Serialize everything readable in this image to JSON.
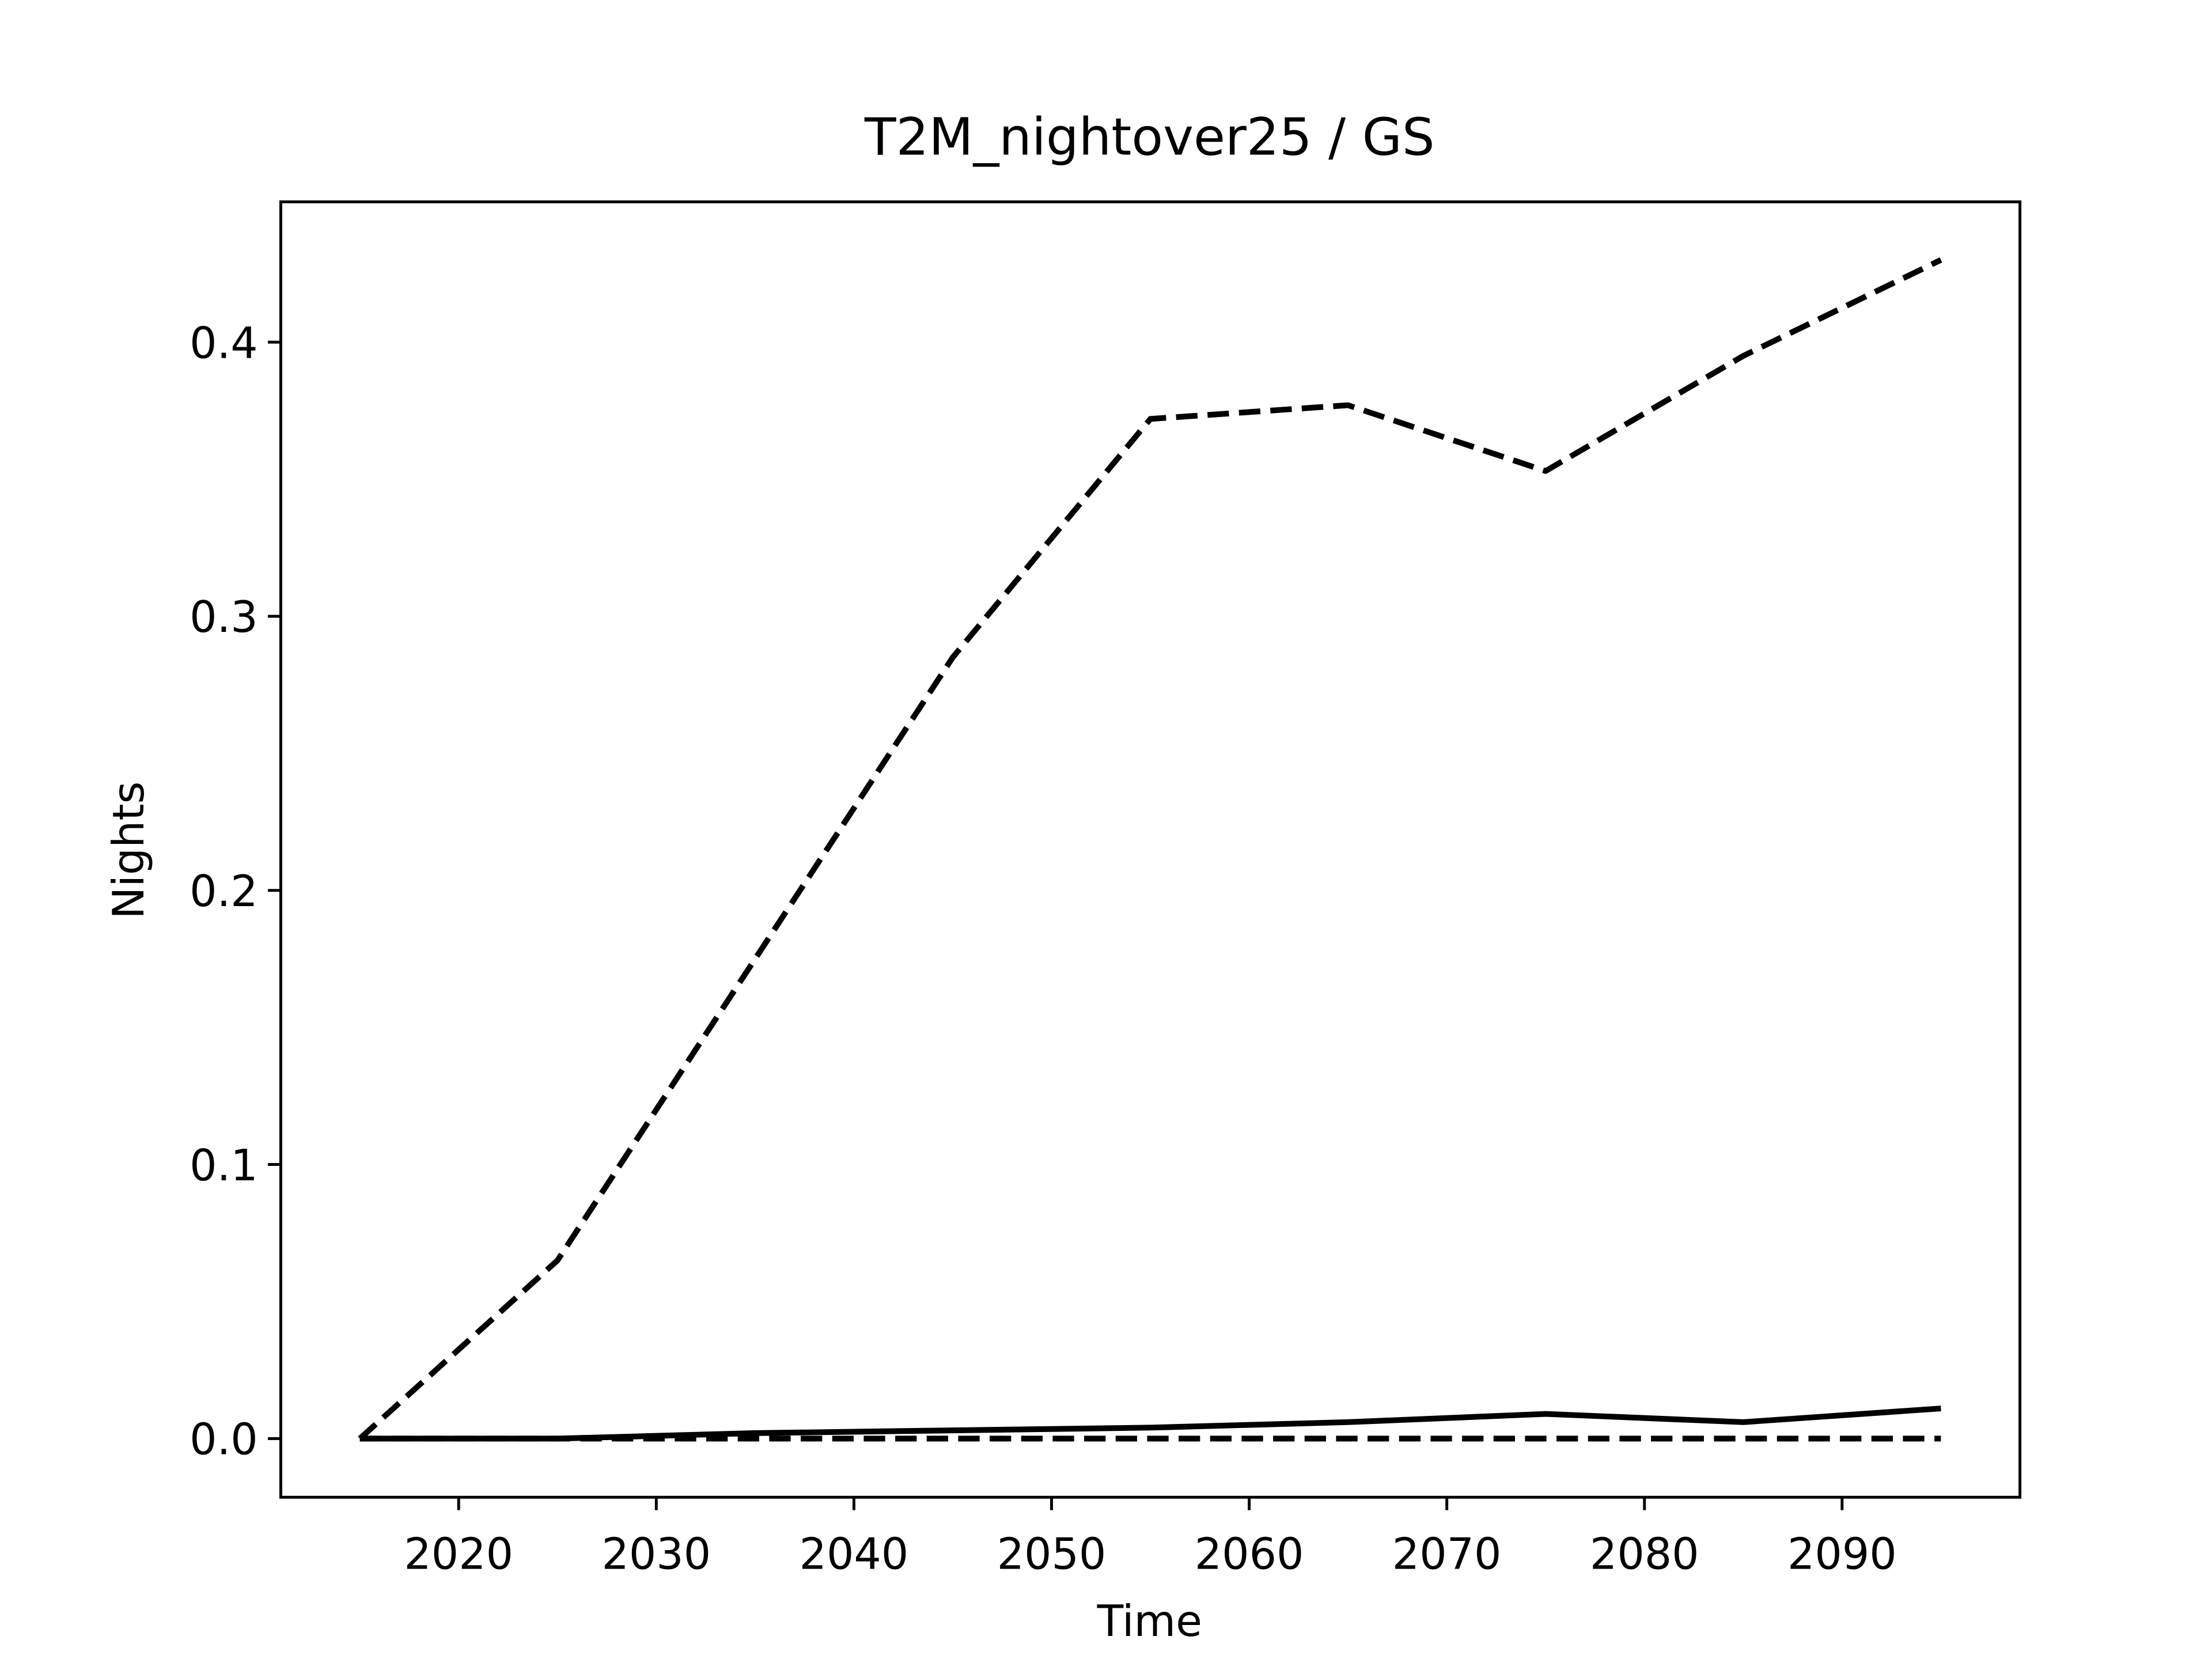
{
  "chart_data": {
    "type": "line",
    "title": "T2M_nightover25 / GS",
    "xlabel": "Time",
    "ylabel": "Nights",
    "x": [
      2015,
      2025,
      2035,
      2045,
      2055,
      2065,
      2075,
      2085,
      2095
    ],
    "series": [
      {
        "color": "#000000",
        "linestyle": "dashed",
        "values": [
          0,
          0.065,
          0.175,
          0.285,
          0.372,
          0.377,
          0.353,
          0.395,
          0.43
        ]
      },
      {
        "color": "#000000",
        "linestyle": "solid",
        "values": [
          0,
          0,
          0.002,
          0.003,
          0.004,
          0.006,
          0.009,
          0.006,
          0.011
        ]
      },
      {
        "color": "#000000",
        "linestyle": "dashed",
        "values": [
          0,
          0,
          0,
          0,
          0,
          0,
          0,
          0,
          0
        ]
      }
    ],
    "xlim": [
      2011,
      2099
    ],
    "xticks": [
      2020,
      2030,
      2040,
      2050,
      2060,
      2070,
      2080,
      2090
    ],
    "ylim": [
      -0.0214,
      0.4512
    ],
    "yticks": [
      {
        "value": 0,
        "label": "0.0"
      },
      0.1,
      0.2,
      0.3,
      0.4
    ],
    "grid": false
  }
}
